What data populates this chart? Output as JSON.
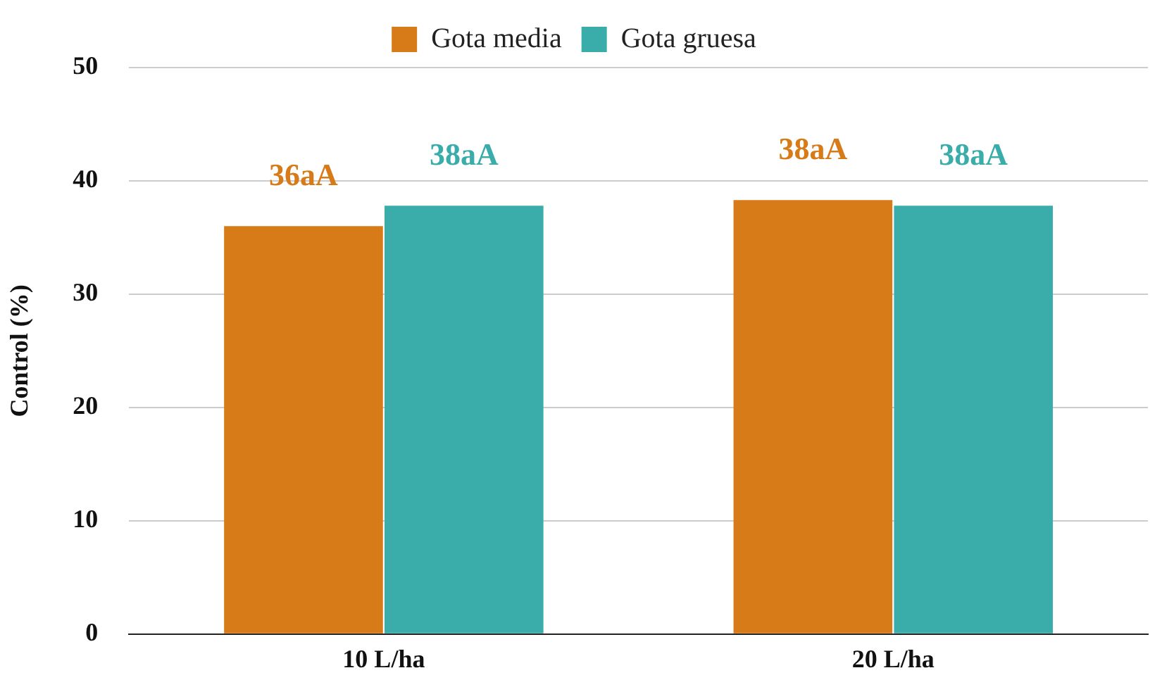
{
  "chart_data": {
    "type": "bar",
    "ylabel": "Control (%)",
    "categories": [
      "10 L/ha",
      "20 L/ha"
    ],
    "series": [
      {
        "name": "Gota media",
        "color": "#d77a18",
        "values": [
          36,
          38.3
        ],
        "value_labels": [
          "36aA",
          "38aA"
        ]
      },
      {
        "name": "Gota gruesa",
        "color": "#3aaca9",
        "values": [
          37.8,
          37.8
        ],
        "value_labels": [
          "38aA",
          "38aA"
        ]
      }
    ],
    "ylim": [
      0,
      50
    ],
    "yticks": [
      0,
      10,
      20,
      30,
      40,
      50
    ],
    "grid": "y",
    "legend": "top"
  }
}
